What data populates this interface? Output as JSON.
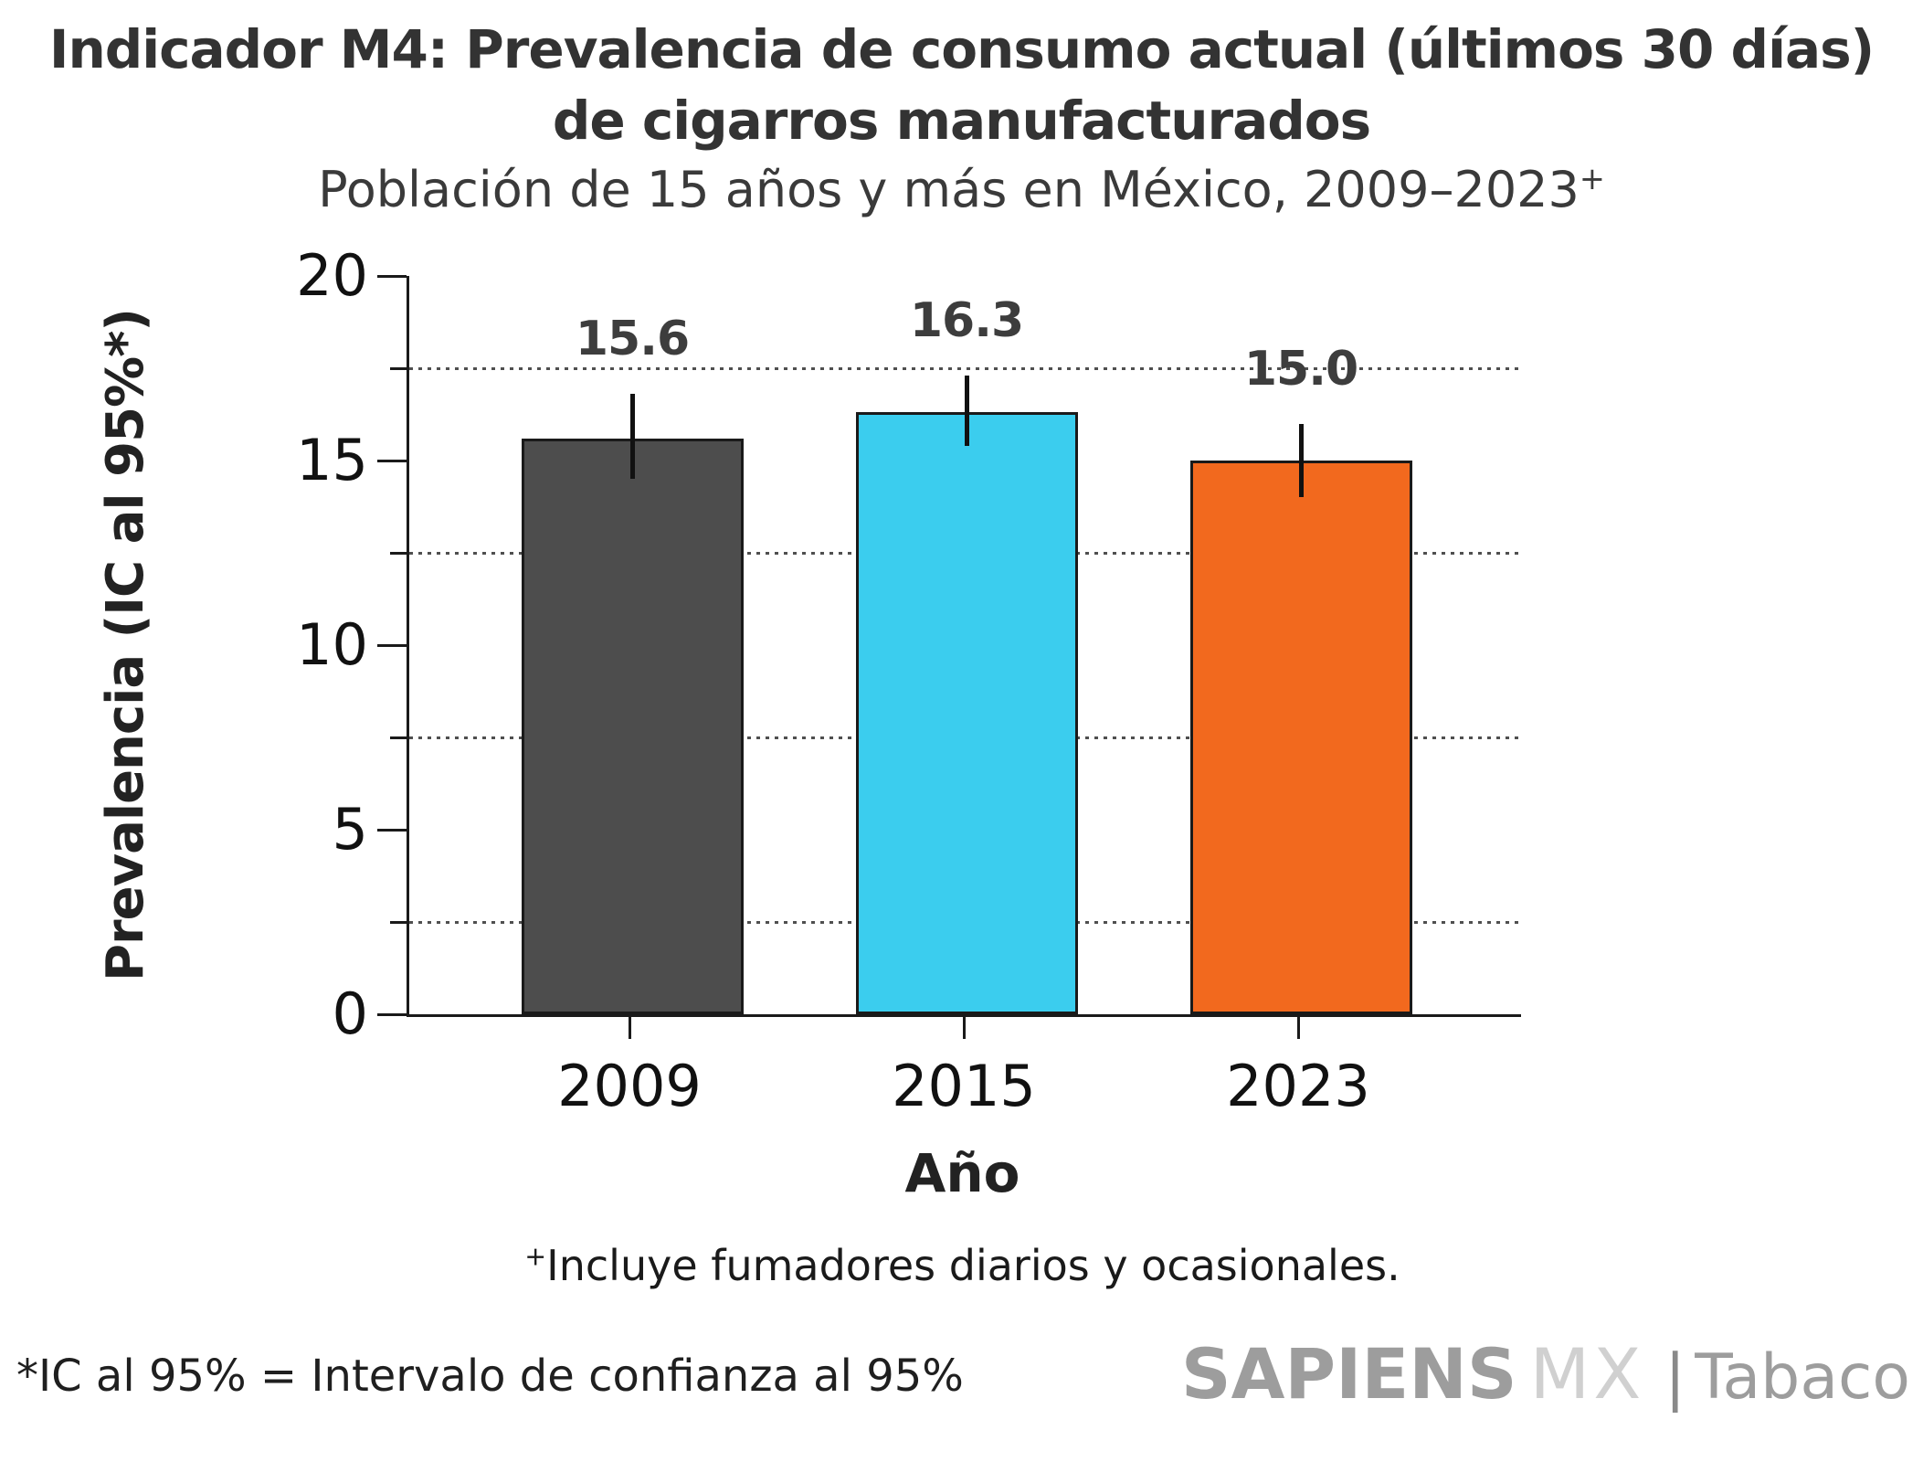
{
  "title": {
    "line1": "Indicador M4: Prevalencia de consumo actual (últimos 30 días)",
    "line2": "de cigarros manufacturados"
  },
  "subtitle": {
    "text": "Población de 15 años y más en México, 2009–2023",
    "marker": "+"
  },
  "chart_data": {
    "type": "bar",
    "title": "Indicador M4: Prevalencia de consumo actual (últimos 30 días) de cigarros manufacturados",
    "subtitle": "Población de 15 años y más en México, 2009–2023+",
    "categories": [
      "2009",
      "2015",
      "2023"
    ],
    "values": [
      15.6,
      16.3,
      15.0
    ],
    "value_labels": [
      "15.6",
      "16.3",
      "15.0"
    ],
    "error_bars": [
      {
        "low": 14.5,
        "high": 16.8
      },
      {
        "low": 15.4,
        "high": 17.3
      },
      {
        "low": 14.0,
        "high": 16.0
      }
    ],
    "bar_colors": [
      "#4d4d4d",
      "#3bcdee",
      "#f2691e"
    ],
    "bar_edge_color": "#1a1a1a",
    "xlabel": "Año",
    "ylabel": "Prevalencia (IC al 95%*)",
    "ylim": [
      0,
      20
    ],
    "y_major_ticks": [
      0,
      5,
      10,
      15,
      20
    ],
    "y_minor_ticks": [
      2.5,
      7.5,
      12.5,
      17.5
    ],
    "gridlines": {
      "style": "dotted",
      "positions": [
        2.5,
        7.5,
        12.5,
        17.5
      ]
    },
    "legend": "none"
  },
  "footnotes": {
    "plus_marker": "+",
    "plus_text": "Incluye fumadores diarios y ocasionales.",
    "asterisk_text": "*IC al 95% = Intervalo de confianza al 95%"
  },
  "logo": {
    "part1": "SAPIENS",
    "part2": "MX",
    "separator": "|",
    "part3": "Tabaco"
  },
  "colors": {
    "title_text": "#333333",
    "tick_text": "#111111",
    "bar_2009": "#4d4d4d",
    "bar_2015": "#3bcdee",
    "bar_2023": "#f2691e",
    "error_bar": "#111111",
    "logo_gray": "#9d9d9d",
    "logo_light_gray": "#d0d0d0"
  }
}
